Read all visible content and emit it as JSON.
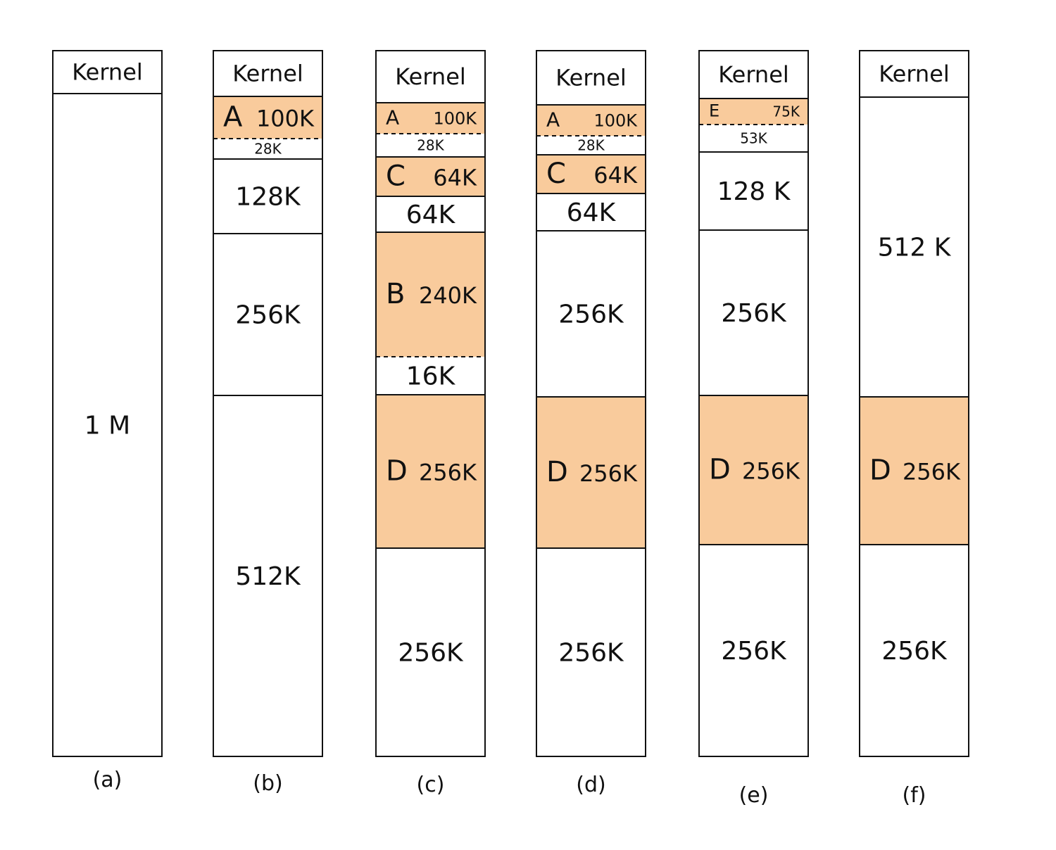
{
  "colors": {
    "allocated": "#F9CB9C",
    "line": "#111111",
    "free": "#ffffff"
  },
  "columns": [
    {
      "caption": "(a)",
      "blocks": [
        {
          "name": "",
          "size": "Kernel",
          "allocated": false,
          "kernel": true
        },
        {
          "name": "",
          "size": "1 M",
          "allocated": false
        }
      ]
    },
    {
      "caption": "(b)",
      "blocks": [
        {
          "name": "",
          "size": "Kernel",
          "allocated": false,
          "kernel": true
        },
        {
          "name": "A",
          "size": "100K",
          "allocated": true
        },
        {
          "name": "",
          "size": "28K",
          "allocated": false,
          "dashed_top": true
        },
        {
          "name": "",
          "size": "128K",
          "allocated": false
        },
        {
          "name": "",
          "size": "256K",
          "allocated": false
        },
        {
          "name": "",
          "size": "512K",
          "allocated": false
        }
      ]
    },
    {
      "caption": "(c)",
      "blocks": [
        {
          "name": "",
          "size": "Kernel",
          "allocated": false,
          "kernel": true
        },
        {
          "name": "A",
          "size": "100K",
          "allocated": true
        },
        {
          "name": "",
          "size": "28K",
          "allocated": false,
          "dashed_top": true
        },
        {
          "name": "C",
          "size": "64K",
          "allocated": true
        },
        {
          "name": "",
          "size": "64K",
          "allocated": false
        },
        {
          "name": "B",
          "size": "240K",
          "allocated": true
        },
        {
          "name": "",
          "size": "16K",
          "allocated": false,
          "dashed_top": true
        },
        {
          "name": "D",
          "size": "256K",
          "allocated": true
        },
        {
          "name": "",
          "size": "256K",
          "allocated": false
        }
      ]
    },
    {
      "caption": "(d)",
      "blocks": [
        {
          "name": "",
          "size": "Kernel",
          "allocated": false,
          "kernel": true
        },
        {
          "name": "A",
          "size": "100K",
          "allocated": true
        },
        {
          "name": "",
          "size": "28K",
          "allocated": false,
          "dashed_top": true
        },
        {
          "name": "C",
          "size": "64K",
          "allocated": true
        },
        {
          "name": "",
          "size": "64K",
          "allocated": false
        },
        {
          "name": "",
          "size": "256K",
          "allocated": false
        },
        {
          "name": "D",
          "size": "256K",
          "allocated": true
        },
        {
          "name": "",
          "size": "256K",
          "allocated": false
        }
      ]
    },
    {
      "caption": "(e)",
      "blocks": [
        {
          "name": "",
          "size": "Kernel",
          "allocated": false,
          "kernel": true
        },
        {
          "name": "E",
          "size": "75K",
          "allocated": true
        },
        {
          "name": "",
          "size": "53K",
          "allocated": false,
          "dashed_top": true
        },
        {
          "name": "",
          "size": "128 K",
          "allocated": false
        },
        {
          "name": "",
          "size": "256K",
          "allocated": false
        },
        {
          "name": "D",
          "size": "256K",
          "allocated": true
        },
        {
          "name": "",
          "size": "256K",
          "allocated": false
        }
      ]
    },
    {
      "caption": "(f)",
      "blocks": [
        {
          "name": "",
          "size": "Kernel",
          "allocated": false,
          "kernel": true
        },
        {
          "name": "",
          "size": "512 K",
          "allocated": false
        },
        {
          "name": "D",
          "size": "256K",
          "allocated": true
        },
        {
          "name": "",
          "size": "256K",
          "allocated": false
        }
      ]
    }
  ]
}
